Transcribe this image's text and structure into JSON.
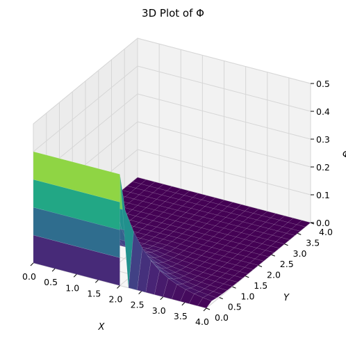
{
  "chart_data": {
    "type": "surface3d",
    "title": "3D Plot of Φ",
    "xlabel": "X",
    "ylabel": "Y",
    "zlabel": "Φ",
    "xlim": [
      0,
      4
    ],
    "ylim": [
      0,
      4
    ],
    "zlim": [
      0,
      0.5
    ],
    "x_ticks": [
      "0.0",
      "0.5",
      "1.0",
      "1.5",
      "2.0",
      "2.5",
      "3.0",
      "3.5",
      "4.0"
    ],
    "y_ticks": [
      "0.0",
      "0.5",
      "1.0",
      "1.5",
      "2.0",
      "2.5",
      "3.0",
      "3.5",
      "4.0"
    ],
    "z_ticks": [
      "0.0",
      "0.1",
      "0.2",
      "0.3",
      "0.4",
      "0.5"
    ],
    "grid": true,
    "colormap": "viridis",
    "surface": {
      "x_count": 21,
      "y_count": 21,
      "boundary_value": 0.4,
      "boundary_edge": "y = 0, x from 0 to 2",
      "description_values": "potential decaying from 0.4 along y=0 (x<=2) to 0 elsewhere"
    }
  }
}
